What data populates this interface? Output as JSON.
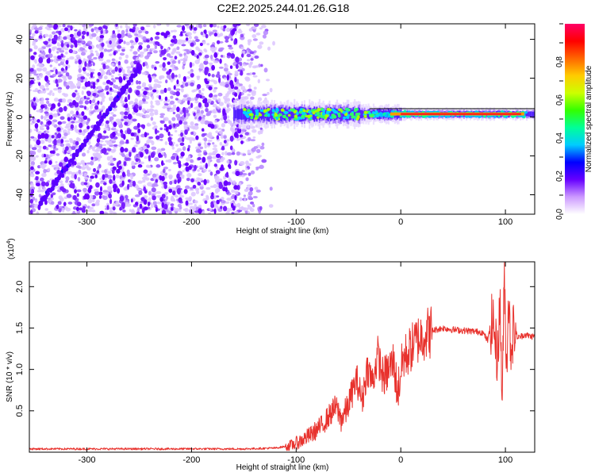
{
  "chart_data": [
    {
      "type": "heatmap",
      "title": "C2E2.2025.244.01.26.G18",
      "xlabel": "Height of straight line (km)",
      "ylabel": "Frequency (Hz)",
      "xlim": [
        -355,
        128
      ],
      "ylim": [
        -50,
        48
      ],
      "xticks": [
        -300,
        -200,
        -100,
        0,
        100
      ],
      "yticks": [
        -40,
        -20,
        0,
        20,
        40
      ],
      "xtick_labels": [
        "-300",
        "-200",
        "-100",
        "0",
        "100"
      ],
      "ytick_labels": [
        "-40",
        "-20",
        "0",
        "20",
        "40"
      ],
      "noise_region_x": [
        -355,
        -120
      ],
      "diagonal_feature": {
        "from": [
          -345,
          -45
        ],
        "to": [
          -250,
          25
        ]
      },
      "signal_band": {
        "x_start": -160,
        "x_end": 128,
        "center_hz": 1.5
      },
      "colorbar": {
        "label": "Normalized spectral amplitude",
        "range": [
          0.0,
          1.0
        ],
        "ticks": [
          0.0,
          0.2,
          0.4,
          0.6,
          0.8
        ],
        "tick_labels": [
          "0.0",
          "0.2",
          "0.4",
          "0.6",
          "0.8"
        ],
        "colors": [
          "#ffffff",
          "#cc99ff",
          "#6600ff",
          "#0000ff",
          "#00ccff",
          "#00ff99",
          "#33ff00",
          "#ccff00",
          "#ffcc00",
          "#ff6600",
          "#ff0000",
          "#ff0066"
        ]
      }
    },
    {
      "type": "line",
      "xlabel": "Height of straight line (km)",
      "ylabel": "SNR (10 * v/v)",
      "y_exponent_label": "(x10",
      "y_exponent_power": "4",
      "y_exponent_close": ")",
      "xlim": [
        -355,
        128
      ],
      "ylim": [
        0,
        2.3
      ],
      "xticks": [
        -300,
        -200,
        -100,
        0,
        100
      ],
      "yticks": [
        0.5,
        1.0,
        1.5,
        2.0
      ],
      "xtick_labels": [
        "-300",
        "-200",
        "-100",
        "0",
        "100"
      ],
      "ytick_labels": [
        "0.5",
        "1.0",
        "1.5",
        "2.0"
      ],
      "color": "#e8322d",
      "series": [
        {
          "name": "SNR",
          "x": [
            -355,
            -300,
            -250,
            -200,
            -150,
            -120,
            -105,
            -95,
            -85,
            -75,
            -68,
            -62,
            -57,
            -52,
            -47,
            -42,
            -37,
            -32,
            -27,
            -22,
            -17,
            -12,
            -7,
            -3,
            2,
            8,
            15,
            22,
            30,
            40,
            50,
            60,
            70,
            78,
            83,
            88,
            92,
            95,
            97,
            99,
            101,
            103,
            105,
            108,
            112,
            118,
            124,
            128
          ],
          "y": [
            0.04,
            0.04,
            0.04,
            0.04,
            0.04,
            0.05,
            0.08,
            0.14,
            0.22,
            0.33,
            0.45,
            0.55,
            0.4,
            0.5,
            0.7,
            0.88,
            0.62,
            1.02,
            0.85,
            1.18,
            0.9,
            0.98,
            1.1,
            0.72,
            1.12,
            1.22,
            1.35,
            1.42,
            1.47,
            1.5,
            1.48,
            1.47,
            1.46,
            1.45,
            1.35,
            1.62,
            1.15,
            1.75,
            0.6,
            2.2,
            1.0,
            1.9,
            1.25,
            1.5,
            1.38,
            1.42,
            1.4,
            1.4
          ]
        }
      ]
    }
  ]
}
